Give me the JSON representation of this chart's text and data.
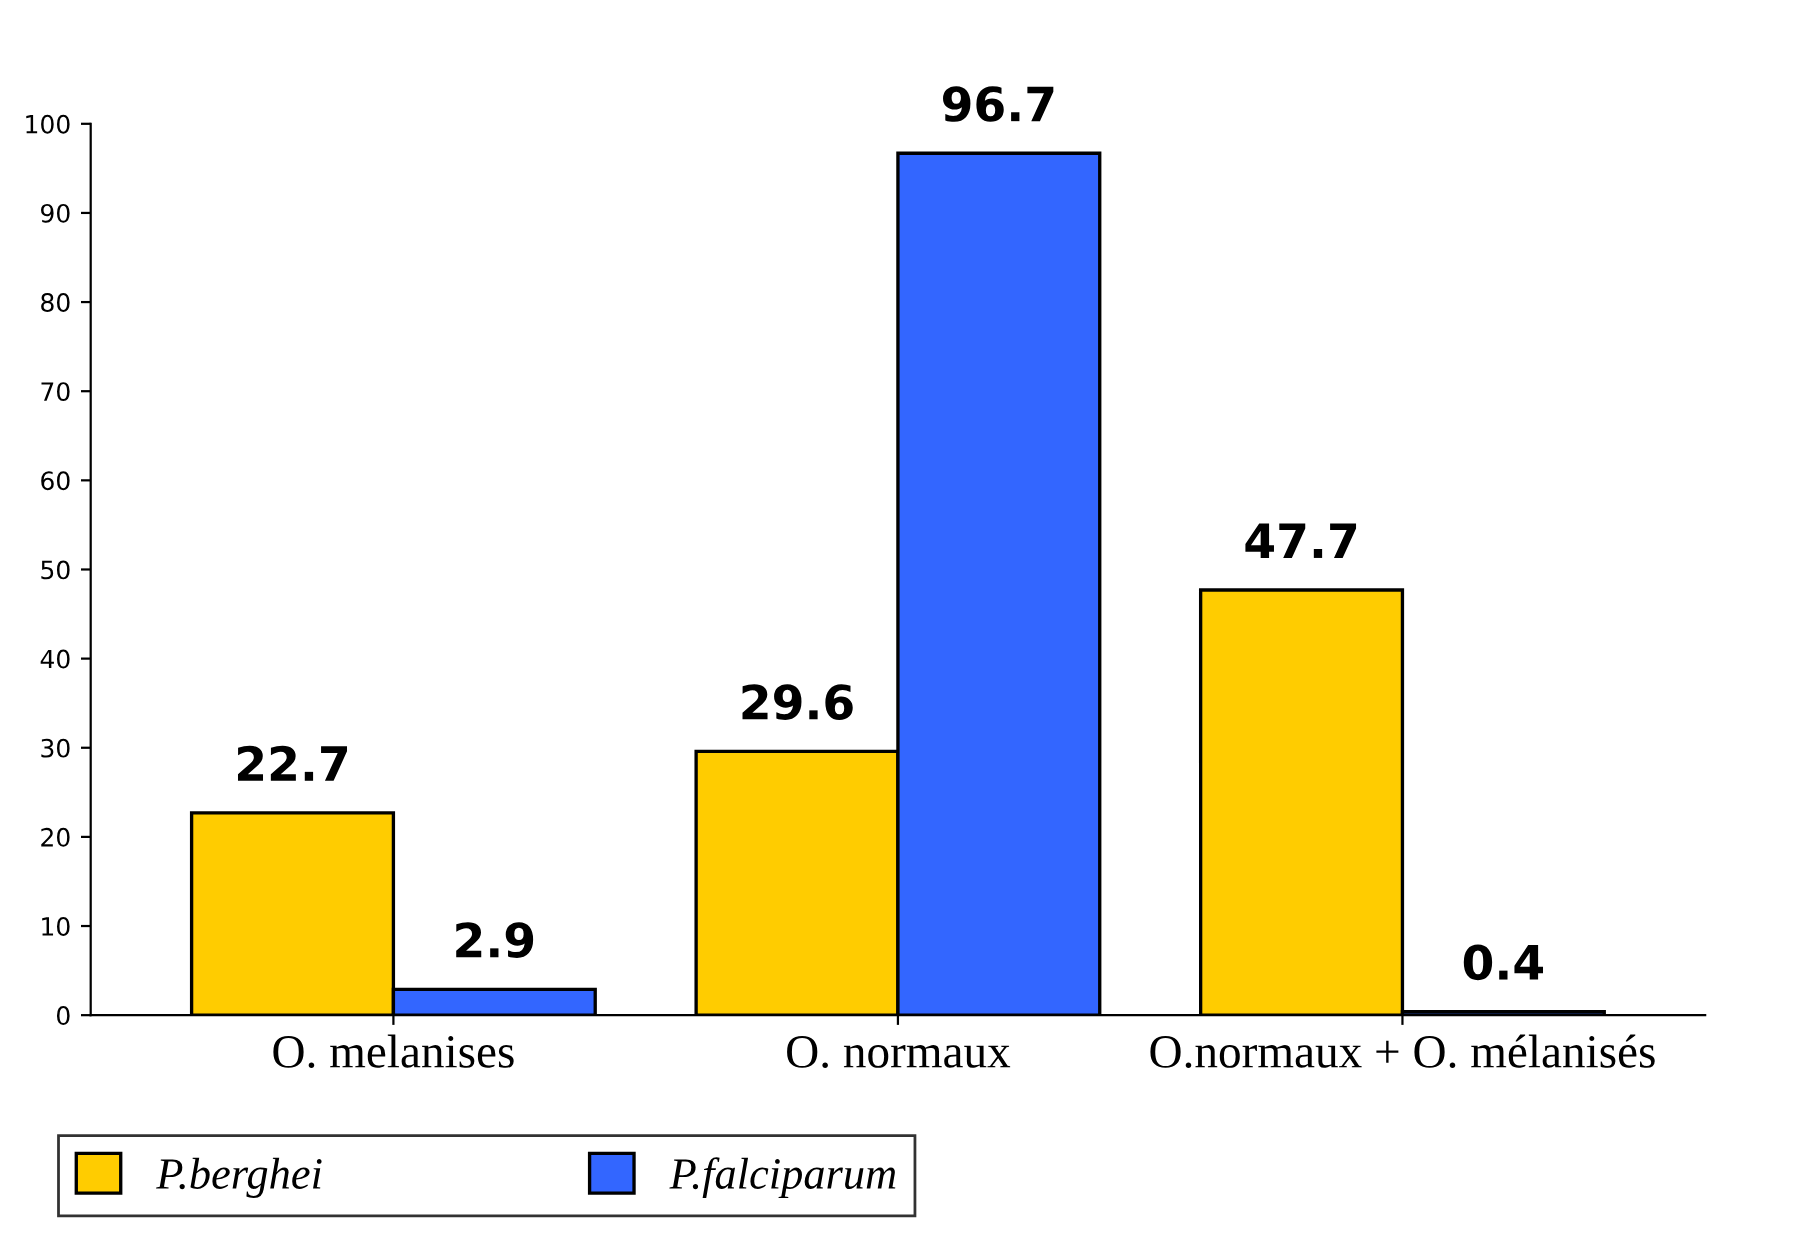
{
  "chart_data": {
    "type": "bar",
    "categories": [
      "O. melanises",
      "O. normaux",
      "O.normaux + O. mélanisés"
    ],
    "series": [
      {
        "name": "P.berghei",
        "color": "#ffcc00",
        "values": [
          22.7,
          29.6,
          47.7
        ]
      },
      {
        "name": "P.falciparum",
        "color": "#3366ff",
        "values": [
          2.9,
          96.7,
          0.4
        ]
      }
    ],
    "ylim": [
      0,
      100
    ],
    "yticks": [
      0,
      10,
      20,
      30,
      40,
      50,
      60,
      70,
      80,
      90,
      100
    ],
    "grid": false,
    "data_labels": true,
    "legend": "bottom"
  }
}
